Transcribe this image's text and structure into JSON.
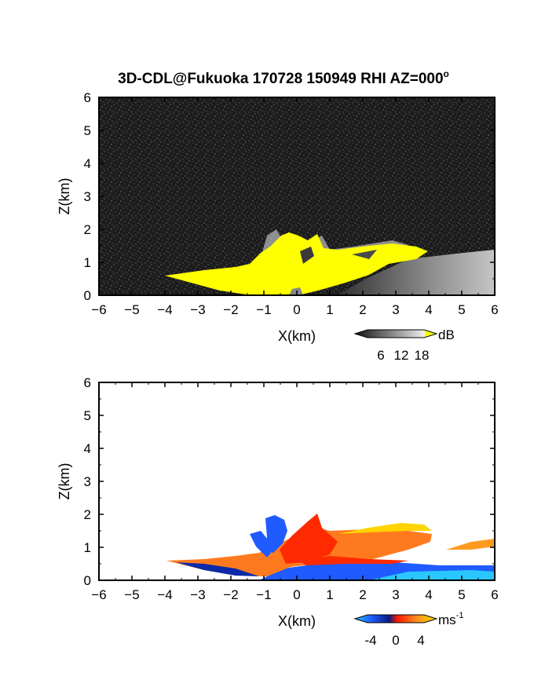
{
  "title": "3D-CDL@Fukuoka 170728 150949 RHI AZ=000",
  "title_degree_mark": "o",
  "colors": {
    "background": "#ffffff",
    "noise_panel": "#1c1c1c",
    "reflectivity_high": "#ffff00",
    "velocity_negative_dark": "#0a2aa8",
    "velocity_negative": "#1f5bff",
    "velocity_negative_light": "#29c6ff",
    "velocity_zero": "#ff2a00",
    "velocity_positive": "#ff7a1f",
    "velocity_positive_high": "#ffd400"
  },
  "chart_data": [
    {
      "type": "heatmap",
      "name": "reflectivity",
      "xlabel": "X(km)",
      "ylabel": "Z(km)",
      "xlim": [
        -6,
        6
      ],
      "ylim": [
        0,
        6
      ],
      "xticks": [
        "-6",
        "-5",
        "-4",
        "-3",
        "-2",
        "-1",
        "0",
        "1",
        "2",
        "3",
        "4",
        "5",
        "6"
      ],
      "yticks": [
        "0",
        "1",
        "2",
        "3",
        "4",
        "5",
        "6"
      ],
      "colorbar": {
        "unit": "dB",
        "ticks": [
          "6",
          "12",
          "18"
        ]
      },
      "regions": [
        {
          "kind": "strong echo (>18 dB)",
          "color": "yellow",
          "x_range": [
            -4,
            4.2
          ],
          "z_range": [
            0,
            2
          ]
        },
        {
          "kind": "weak echo (grey)",
          "x_range": [
            2.5,
            6
          ],
          "z_range": [
            0,
            1.2
          ]
        },
        {
          "kind": "background noise",
          "x_range": [
            -6,
            6
          ],
          "z_range": [
            0,
            6
          ]
        }
      ]
    },
    {
      "type": "heatmap",
      "name": "doppler velocity",
      "xlabel": "X(km)",
      "ylabel": "Z(km)",
      "xlim": [
        -6,
        6
      ],
      "ylim": [
        0,
        6
      ],
      "xticks": [
        "-6",
        "-5",
        "-4",
        "-3",
        "-2",
        "-1",
        "0",
        "1",
        "2",
        "3",
        "4",
        "5",
        "6"
      ],
      "yticks": [
        "0",
        "1",
        "2",
        "3",
        "4",
        "5",
        "6"
      ],
      "colorbar": {
        "unit": "ms",
        "unit_superscript": "-1",
        "ticks": [
          "-4",
          "0",
          "4"
        ]
      },
      "regions": [
        {
          "kind": "positive (orange/red)",
          "x_range": [
            -4,
            4.2
          ],
          "z_range": [
            0.2,
            1.6
          ]
        },
        {
          "kind": "negative (blue)",
          "x_range": [
            -1,
            6
          ],
          "z_range": [
            0,
            0.5
          ]
        },
        {
          "kind": "negative (blue)",
          "x_range": [
            -1,
            0
          ],
          "z_range": [
            0.5,
            2
          ]
        }
      ]
    }
  ]
}
